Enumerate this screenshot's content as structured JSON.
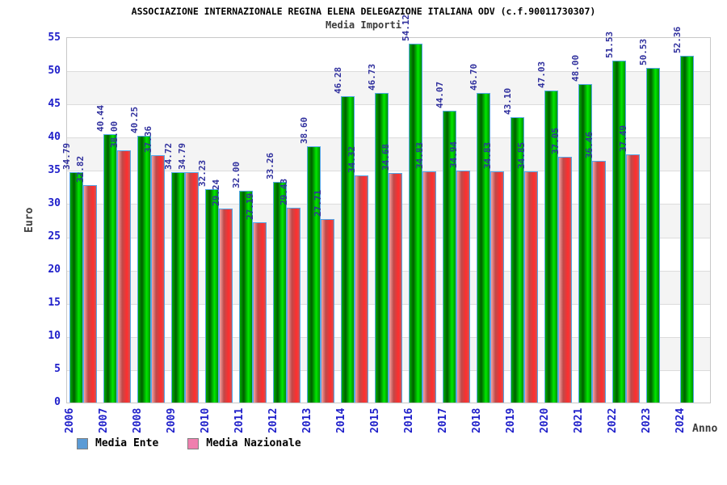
{
  "title": "ASSOCIAZIONE INTERNAZIONALE REGINA ELENA DELEGAZIONE ITALIANA ODV (c.f.90011730307)",
  "subtitle": "Media Importi",
  "axes": {
    "y_label": "Euro",
    "x_label": "Anno",
    "y_ticks": [
      0,
      5,
      10,
      15,
      20,
      25,
      30,
      35,
      40,
      45,
      50,
      55
    ]
  },
  "legend": {
    "items": [
      {
        "label": "Media Ente",
        "swatch_color": "#5b9bd5"
      },
      {
        "label": "Media Nazionale",
        "swatch_color": "#ef7fae"
      }
    ]
  },
  "colors": {
    "bar_media_ente": "#00b000",
    "bar_media_nazionale": "#e84848",
    "bar_border": "#56a7e8",
    "value_label": "#31319e",
    "tick_label": "#1f1fca",
    "axis_title": "#3c3c3c",
    "band_gray": "#f4f4f4"
  },
  "chart_data": {
    "type": "bar",
    "title": "Media Importi",
    "xlabel": "Anno",
    "ylabel": "Euro",
    "ylim": [
      0,
      55
    ],
    "grid": true,
    "legend_position": "bottom",
    "value_label_format": "2-decimals",
    "categories": [
      "2006",
      "2007",
      "2008",
      "2009",
      "2010",
      "2011",
      "2012",
      "2013",
      "2014",
      "2015",
      "2016",
      "2017",
      "2018",
      "2019",
      "2020",
      "2021",
      "2022",
      "2023",
      "2024"
    ],
    "series": [
      {
        "name": "Media Ente",
        "values": [
          34.79,
          40.44,
          40.25,
          34.72,
          32.23,
          32.0,
          33.26,
          38.6,
          46.28,
          46.73,
          54.12,
          44.07,
          46.7,
          43.1,
          47.03,
          48.0,
          51.53,
          50.53,
          52.36
        ]
      },
      {
        "name": "Media Nazionale",
        "values": [
          32.82,
          38.0,
          37.36,
          34.79,
          29.24,
          27.19,
          29.43,
          27.71,
          34.32,
          34.68,
          34.83,
          34.94,
          34.83,
          34.85,
          37.05,
          36.46,
          37.49,
          null,
          null
        ]
      }
    ]
  }
}
